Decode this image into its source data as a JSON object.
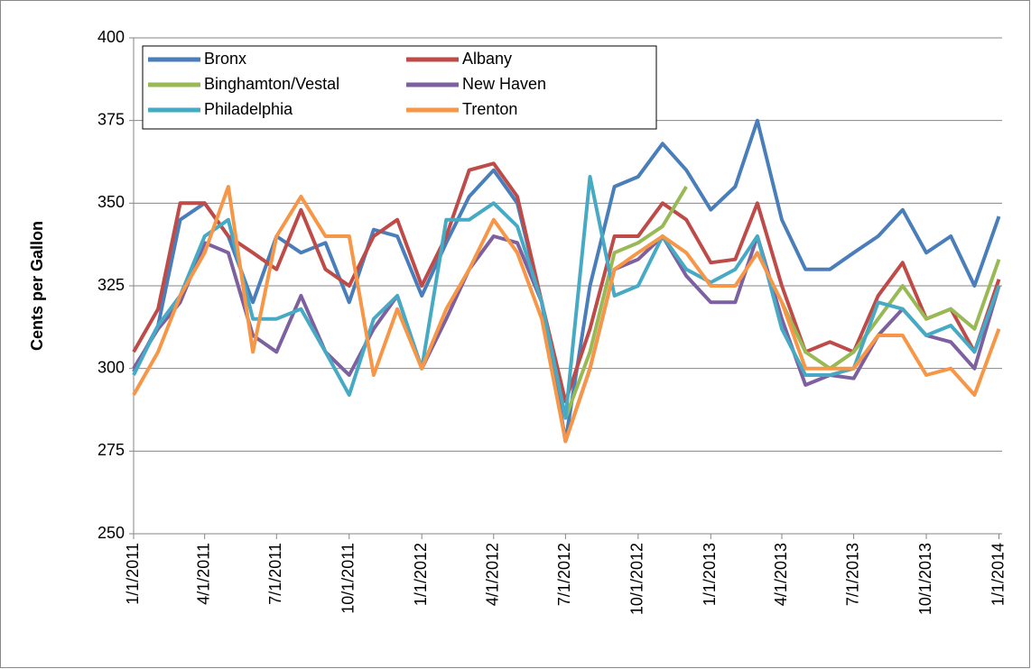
{
  "chart_data": {
    "type": "line",
    "ylabel": "Cents per Gallon",
    "x": [
      "1/1/2011",
      "2/1/2011",
      "3/1/2011",
      "4/1/2011",
      "5/1/2011",
      "6/1/2011",
      "7/1/2011",
      "8/1/2011",
      "9/1/2011",
      "10/1/2011",
      "11/1/2011",
      "12/1/2011",
      "1/1/2012",
      "2/1/2012",
      "3/1/2012",
      "4/1/2012",
      "5/1/2012",
      "6/1/2012",
      "7/1/2012",
      "8/1/2012",
      "9/1/2012",
      "10/1/2012",
      "11/1/2012",
      "12/1/2012",
      "1/1/2013",
      "2/1/2013",
      "3/1/2013",
      "4/1/2013",
      "5/1/2013",
      "6/1/2013",
      "7/1/2013",
      "8/1/2013",
      "9/1/2013",
      "10/1/2013",
      "11/1/2013",
      "12/1/2013",
      "1/1/2014"
    ],
    "series": [
      {
        "name": "Bronx",
        "color": "#4a7ebb",
        "values": [
          299,
          313,
          345,
          350,
          340,
          320,
          340,
          335,
          338,
          320,
          342,
          340,
          322,
          338,
          352,
          360,
          350,
          320,
          278,
          325,
          355,
          358,
          368,
          360,
          348,
          355,
          375,
          345,
          330,
          330,
          335,
          340,
          348,
          335,
          340,
          325,
          346
        ]
      },
      {
        "name": "Albany",
        "color": "#be4b48",
        "values": [
          305,
          318,
          350,
          350,
          340,
          335,
          330,
          348,
          330,
          325,
          340,
          345,
          325,
          340,
          360,
          362,
          352,
          320,
          290,
          312,
          340,
          340,
          350,
          345,
          332,
          333,
          350,
          325,
          305,
          308,
          305,
          322,
          332,
          315,
          318,
          305,
          327
        ]
      },
      {
        "name": "Binghamton/Vestal",
        "color": "#98b954",
        "values": [
          null,
          null,
          null,
          null,
          null,
          null,
          null,
          null,
          null,
          null,
          null,
          null,
          null,
          null,
          null,
          null,
          null,
          null,
          285,
          305,
          335,
          338,
          343,
          355,
          null,
          null,
          null,
          320,
          305,
          300,
          305,
          315,
          325,
          315,
          318,
          312,
          333
        ]
      },
      {
        "name": "New Haven",
        "color": "#7d60a0",
        "values": [
          300,
          312,
          320,
          338,
          335,
          310,
          305,
          322,
          305,
          298,
          312,
          322,
          300,
          315,
          330,
          340,
          338,
          320,
          278,
          300,
          330,
          333,
          340,
          328,
          320,
          320,
          340,
          315,
          295,
          298,
          297,
          310,
          318,
          310,
          308,
          300,
          325
        ]
      },
      {
        "name": "Philadelphia",
        "color": "#46aac5",
        "values": [
          298,
          313,
          322,
          340,
          345,
          315,
          315,
          318,
          305,
          292,
          315,
          322,
          300,
          345,
          345,
          350,
          343,
          320,
          285,
          358,
          322,
          325,
          340,
          330,
          326,
          330,
          340,
          312,
          298,
          298,
          300,
          320,
          318,
          310,
          313,
          305,
          325
        ]
      },
      {
        "name": "Trenton",
        "color": "#f79646",
        "values": [
          292,
          305,
          322,
          335,
          355,
          305,
          340,
          352,
          340,
          340,
          298,
          318,
          300,
          318,
          330,
          345,
          335,
          315,
          278,
          300,
          330,
          335,
          340,
          335,
          325,
          325,
          335,
          320,
          300,
          300,
          300,
          310,
          310,
          298,
          300,
          292,
          312
        ]
      }
    ],
    "xlim": [
      "1/1/2011",
      "1/5/2014"
    ],
    "xticks": [
      "1/1/2011",
      "4/1/2011",
      "7/1/2011",
      "10/1/2011",
      "1/1/2012",
      "4/1/2012",
      "7/1/2012",
      "10/1/2012",
      "1/1/2013",
      "4/1/2013",
      "7/1/2013",
      "10/1/2013",
      "1/1/2014"
    ],
    "ylim": [
      250,
      400
    ],
    "yticks": [
      250,
      275,
      300,
      325,
      350,
      375,
      400
    ],
    "grid": true,
    "legend": "top-left"
  }
}
